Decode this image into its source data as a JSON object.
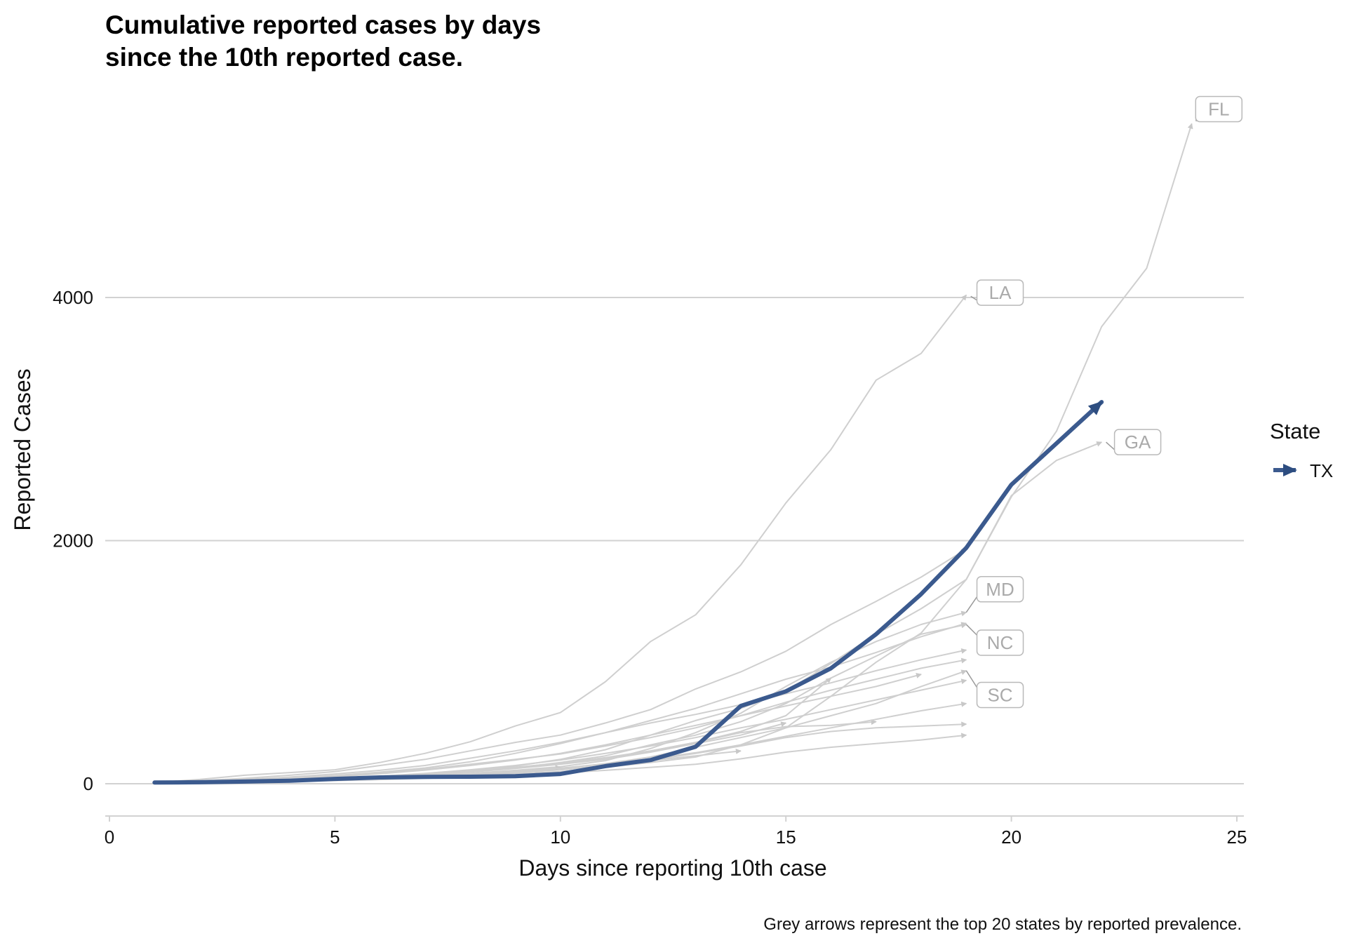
{
  "chart_data": {
    "type": "line",
    "title": "Cumulative reported cases by days since the 10th reported case.",
    "title_lines": [
      "Cumulative reported cases by days",
      "since the 10th reported case."
    ],
    "xlabel": "Days since reporting 10th case",
    "ylabel": "Reported Cases",
    "caption": "Grey arrows represent the top 20 states by reported prevalence.",
    "xlim": [
      0,
      25
    ],
    "ylim": [
      -250,
      5600
    ],
    "x_ticks": [
      0,
      5,
      10,
      15,
      20,
      25
    ],
    "y_ticks": [
      0,
      2000,
      4000
    ],
    "y_tick_labels": [
      "0",
      "2000",
      "4000"
    ],
    "grid": "horizontal major",
    "legend": {
      "title": "State",
      "position": "right",
      "entries": [
        {
          "label": "TX",
          "color": "#3b5a8e"
        }
      ]
    },
    "highlight_series": {
      "name": "TX",
      "color": "#3b5a8e",
      "x": [
        1,
        2,
        3,
        4,
        5,
        6,
        7,
        8,
        9,
        10,
        11,
        12,
        13,
        14,
        15,
        16,
        17,
        18,
        19,
        20,
        21,
        22
      ],
      "y": [
        10,
        12,
        18,
        25,
        40,
        52,
        56,
        58,
        62,
        80,
        145,
        195,
        305,
        640,
        760,
        950,
        1230,
        1560,
        1940,
        2460,
        2800,
        3140
      ]
    },
    "background_series": [
      {
        "label": "LA",
        "x": [
          1,
          2,
          3,
          4,
          5,
          6,
          7,
          8,
          9,
          10,
          11,
          12,
          13,
          14,
          15,
          16,
          17,
          18,
          19
        ],
        "y": [
          10,
          35,
          70,
          92,
          115,
          175,
          250,
          345,
          475,
          585,
          840,
          1170,
          1390,
          1800,
          2310,
          2750,
          3320,
          3540,
          4020
        ]
      },
      {
        "label": "FL",
        "x": [
          1,
          2,
          3,
          4,
          5,
          6,
          7,
          8,
          9,
          10,
          11,
          12,
          13,
          14,
          15,
          16,
          17,
          18,
          19,
          20,
          21,
          22,
          23,
          24
        ],
        "y": [
          10,
          14,
          18,
          22,
          28,
          35,
          48,
          62,
          80,
          100,
          135,
          175,
          220,
          320,
          460,
          720,
          1000,
          1240,
          1680,
          2360,
          2900,
          3760,
          4240,
          5430
        ]
      },
      {
        "label": "GA",
        "x": [
          1,
          2,
          3,
          4,
          5,
          6,
          7,
          8,
          9,
          10,
          11,
          12,
          13,
          14,
          15,
          16,
          17,
          18,
          19,
          20,
          21,
          22
        ],
        "y": [
          10,
          16,
          22,
          30,
          42,
          60,
          80,
          110,
          145,
          200,
          280,
          400,
          520,
          620,
          760,
          990,
          1230,
          1440,
          1680,
          2370,
          2660,
          2810
        ]
      },
      {
        "label": "MD",
        "x": [
          1,
          2,
          3,
          4,
          5,
          6,
          7,
          8,
          9,
          10,
          11,
          12,
          13,
          14,
          15,
          16,
          17,
          18,
          19
        ],
        "y": [
          10,
          15,
          20,
          28,
          38,
          50,
          65,
          85,
          110,
          140,
          190,
          290,
          420,
          580,
          800,
          1000,
          1170,
          1310,
          1410
        ]
      },
      {
        "label": "NC",
        "x": [
          1,
          2,
          3,
          4,
          5,
          6,
          7,
          8,
          9,
          10,
          11,
          12,
          13,
          14,
          15,
          16,
          17,
          18,
          19
        ],
        "y": [
          10,
          15,
          20,
          30,
          40,
          55,
          75,
          100,
          130,
          175,
          230,
          320,
          400,
          510,
          660,
          870,
          1050,
          1230,
          1310
        ]
      },
      {
        "label": "SC",
        "x": [
          1,
          2,
          3,
          4,
          5,
          6,
          7,
          8,
          9,
          10,
          11,
          12,
          13,
          14,
          15,
          16,
          17,
          18,
          19
        ],
        "y": [
          10,
          14,
          18,
          24,
          32,
          42,
          55,
          72,
          95,
          125,
          165,
          220,
          300,
          380,
          460,
          560,
          660,
          800,
          930
        ]
      },
      {
        "label": "",
        "x": [
          1,
          2,
          3,
          4,
          5,
          6,
          7,
          8,
          9,
          10,
          11,
          12,
          13,
          14,
          15,
          16,
          17,
          18,
          19
        ],
        "y": [
          10,
          20,
          35,
          55,
          80,
          110,
          150,
          210,
          270,
          340,
          420,
          520,
          620,
          740,
          860,
          960,
          1080,
          1210,
          1320
        ]
      },
      {
        "label": "",
        "x": [
          1,
          2,
          3,
          4,
          5,
          6,
          7,
          8,
          9,
          10,
          11,
          12,
          13,
          14,
          15,
          16,
          17,
          18,
          19
        ],
        "y": [
          10,
          18,
          30,
          45,
          65,
          90,
          120,
          160,
          200,
          245,
          310,
          380,
          460,
          560,
          670,
          770,
          860,
          950,
          1020
        ]
      },
      {
        "label": "",
        "x": [
          1,
          2,
          3,
          4,
          5,
          6,
          7,
          8,
          9,
          10,
          11,
          12,
          13,
          14,
          15,
          16,
          17,
          18,
          19
        ],
        "y": [
          10,
          25,
          45,
          70,
          100,
          150,
          200,
          270,
          340,
          400,
          500,
          610,
          780,
          920,
          1090,
          1310,
          1500,
          1700,
          1930
        ]
      },
      {
        "label": "",
        "x": [
          1,
          2,
          3,
          4,
          5,
          6,
          7,
          8,
          9,
          10,
          11,
          12,
          13,
          14,
          15,
          16,
          17,
          18,
          19
        ],
        "y": [
          10,
          14,
          20,
          26,
          34,
          44,
          58,
          74,
          92,
          115,
          150,
          195,
          250,
          310,
          380,
          430,
          460,
          475,
          490
        ]
      },
      {
        "label": "",
        "x": [
          1,
          2,
          3,
          4,
          5,
          6,
          7,
          8,
          9,
          10,
          11,
          12,
          13,
          14,
          15,
          16,
          17,
          18,
          19
        ],
        "y": [
          10,
          12,
          16,
          20,
          26,
          34,
          44,
          56,
          70,
          88,
          110,
          135,
          160,
          205,
          260,
          300,
          330,
          360,
          400
        ]
      },
      {
        "label": "",
        "x": [
          1,
          2,
          3,
          4,
          5,
          6,
          7,
          8,
          9,
          10,
          11,
          12,
          13,
          14,
          15,
          16,
          17
        ],
        "y": [
          10,
          16,
          24,
          34,
          46,
          62,
          82,
          105,
          135,
          170,
          215,
          270,
          340,
          420,
          470,
          480,
          510
        ]
      },
      {
        "label": "",
        "x": [
          1,
          2,
          3,
          4,
          5,
          6,
          7,
          8,
          9,
          10,
          11,
          12,
          13,
          14,
          15
        ],
        "y": [
          10,
          14,
          20,
          28,
          40,
          56,
          74,
          96,
          125,
          160,
          200,
          260,
          330,
          400,
          500
        ]
      },
      {
        "label": "",
        "x": [
          1,
          2,
          3,
          4,
          5,
          6,
          7,
          8,
          9,
          10,
          11,
          12,
          13,
          14,
          15,
          16
        ],
        "y": [
          10,
          15,
          22,
          30,
          42,
          58,
          76,
          100,
          130,
          165,
          210,
          270,
          340,
          430,
          560,
          870
        ]
      },
      {
        "label": "",
        "x": [
          1,
          2,
          3,
          4,
          5,
          6,
          7,
          8,
          9,
          10,
          11,
          12,
          13,
          14
        ],
        "y": [
          10,
          13,
          18,
          24,
          32,
          42,
          54,
          70,
          90,
          115,
          150,
          190,
          230,
          270
        ]
      },
      {
        "label": "",
        "x": [
          1,
          2,
          3,
          4,
          5,
          6,
          7,
          8,
          9,
          10
        ],
        "y": [
          10,
          13,
          17,
          23,
          30,
          40,
          55,
          75,
          100,
          135
        ]
      },
      {
        "label": "",
        "x": [
          1,
          2,
          3,
          4,
          5,
          6,
          7,
          8,
          9,
          10,
          11,
          12,
          13,
          14,
          15,
          16,
          17,
          18
        ],
        "y": [
          10,
          16,
          26,
          40,
          58,
          82,
          112,
          150,
          195,
          250,
          320,
          400,
          480,
          560,
          640,
          720,
          800,
          900
        ]
      },
      {
        "label": "",
        "x": [
          1,
          2,
          3,
          4,
          5,
          6,
          7,
          8,
          9,
          10,
          11,
          12,
          13,
          14,
          15,
          16,
          17,
          18,
          19
        ],
        "y": [
          10,
          20,
          32,
          48,
          68,
          95,
          130,
          180,
          250,
          330,
          420,
          500,
          570,
          650,
          740,
          830,
          930,
          1020,
          1100
        ]
      },
      {
        "label": "",
        "x": [
          1,
          2,
          3,
          4,
          5,
          6,
          7,
          8,
          9,
          10,
          11,
          12,
          13,
          14,
          15,
          16,
          17,
          18,
          19
        ],
        "y": [
          10,
          15,
          22,
          32,
          45,
          62,
          85,
          115,
          150,
          195,
          250,
          310,
          380,
          460,
          530,
          610,
          690,
          770,
          850
        ]
      },
      {
        "label": "",
        "x": [
          1,
          2,
          3,
          4,
          5,
          6,
          7,
          8,
          9,
          10,
          11,
          12,
          13,
          14,
          15,
          16,
          17,
          18,
          19
        ],
        "y": [
          10,
          14,
          19,
          26,
          35,
          46,
          60,
          78,
          100,
          128,
          162,
          205,
          255,
          320,
          390,
          460,
          530,
          600,
          660
        ]
      }
    ],
    "state_labels": [
      {
        "text": "FL",
        "x": 24.6,
        "y": 5550,
        "line_to": [
          24.1,
          5450
        ]
      },
      {
        "text": "LA",
        "x": 19.75,
        "y": 4040,
        "line_to": [
          19.1,
          4010
        ]
      },
      {
        "text": "GA",
        "x": 22.8,
        "y": 2810,
        "line_to": [
          22.1,
          2810
        ]
      },
      {
        "text": "MD",
        "x": 19.75,
        "y": 1600,
        "line_to": [
          19.0,
          1410
        ]
      },
      {
        "text": "NC",
        "x": 19.75,
        "y": 1160,
        "line_to": [
          19.0,
          1310
        ]
      },
      {
        "text": "SC",
        "x": 19.75,
        "y": 730,
        "line_to": [
          19.0,
          930
        ]
      }
    ],
    "colors": {
      "background_series": "#cfcfcf",
      "gridline": "#d2d2d2",
      "label_text": "#aaaaaa",
      "highlight": "#3b5a8e"
    }
  }
}
